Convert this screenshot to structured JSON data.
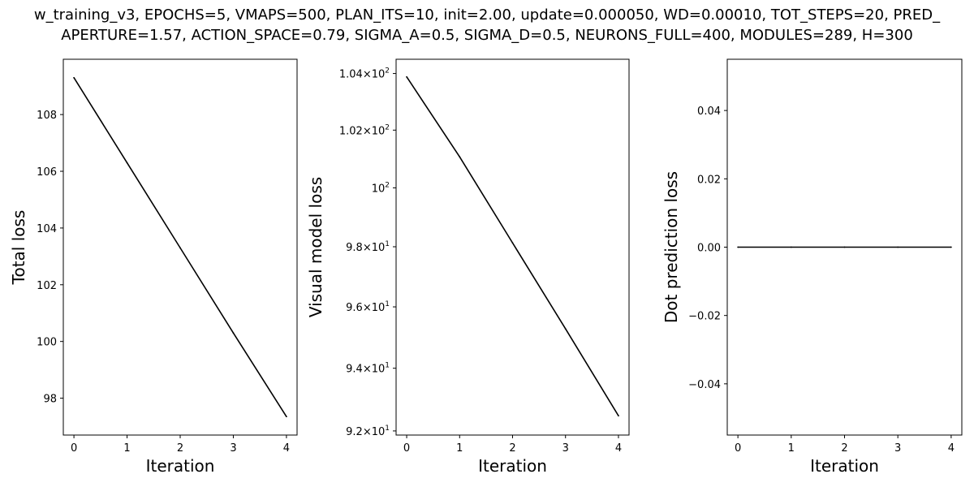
{
  "title": {
    "line1": "w_training_v3, EPOCHS=5, VMAPS=500, PLAN_ITS=10, init=2.00, update=0.000050, WD=0.00010, TOT_STEPS=20, PRED_",
    "line2": "APERTURE=1.57, ACTION_SPACE=0.79, SIGMA_A=0.5, SIGMA_D=0.5, NEURONS_FULL=400, MODULES=289, H=300"
  },
  "chart_data": [
    {
      "type": "line",
      "xlabel": "Iteration",
      "ylabel": "Total loss",
      "yscale": "linear",
      "x": [
        0,
        1,
        2,
        3,
        4
      ],
      "series": [
        {
          "values": [
            109.3,
            106.3,
            103.3,
            100.3,
            97.35
          ],
          "color": "#000000"
        }
      ],
      "xlim": [
        -0.2,
        4.2
      ],
      "ylim": [
        96.7,
        109.95
      ],
      "xticks": [
        "0",
        "1",
        "2",
        "3",
        "4"
      ],
      "yticks": [
        {
          "value": 98,
          "label": "98"
        },
        {
          "value": 100,
          "label": "100"
        },
        {
          "value": 102,
          "label": "102"
        },
        {
          "value": 104,
          "label": "104"
        },
        {
          "value": 106,
          "label": "106"
        },
        {
          "value": 108,
          "label": "108"
        }
      ],
      "grid": false
    },
    {
      "type": "line",
      "xlabel": "Iteration",
      "ylabel": "Visual model loss",
      "yscale": "log",
      "x": [
        0,
        1,
        2,
        3,
        4
      ],
      "series": [
        {
          "values": [
            103.88,
            101.07,
            98.13,
            95.28,
            92.48
          ],
          "color": "#000000"
        }
      ],
      "xlim": [
        -0.2,
        4.2
      ],
      "ylim": [
        91.87,
        104.51
      ],
      "xticks": [
        "0",
        "1",
        "2",
        "3",
        "4"
      ],
      "yticks": [
        {
          "value": 92,
          "mantissa": "9.2",
          "base": "10",
          "exp": "1"
        },
        {
          "value": 94,
          "mantissa": "9.4",
          "base": "10",
          "exp": "1"
        },
        {
          "value": 96,
          "mantissa": "9.6",
          "base": "10",
          "exp": "1"
        },
        {
          "value": 98,
          "mantissa": "9.8",
          "base": "10",
          "exp": "1"
        },
        {
          "value": 100,
          "mantissa": "",
          "base": "10",
          "exp": "2"
        },
        {
          "value": 102,
          "mantissa": "1.02",
          "base": "10",
          "exp": "2"
        },
        {
          "value": 104,
          "mantissa": "1.04",
          "base": "10",
          "exp": "2"
        }
      ],
      "grid": false
    },
    {
      "type": "line",
      "xlabel": "Iteration",
      "ylabel": "Dot prediction loss",
      "yscale": "linear",
      "x": [
        0,
        1,
        2,
        3,
        4
      ],
      "series": [
        {
          "values": [
            0,
            0,
            0,
            0,
            0
          ],
          "color": "#000000"
        }
      ],
      "xlim": [
        -0.2,
        4.2
      ],
      "ylim": [
        -0.055,
        0.055
      ],
      "xticks": [
        "0",
        "1",
        "2",
        "3",
        "4"
      ],
      "yticks": [
        {
          "value": -0.04,
          "label": "−0.04"
        },
        {
          "value": -0.02,
          "label": "−0.02"
        },
        {
          "value": 0.0,
          "label": "0.00"
        },
        {
          "value": 0.02,
          "label": "0.02"
        },
        {
          "value": 0.04,
          "label": "0.04"
        }
      ],
      "grid": false
    }
  ]
}
